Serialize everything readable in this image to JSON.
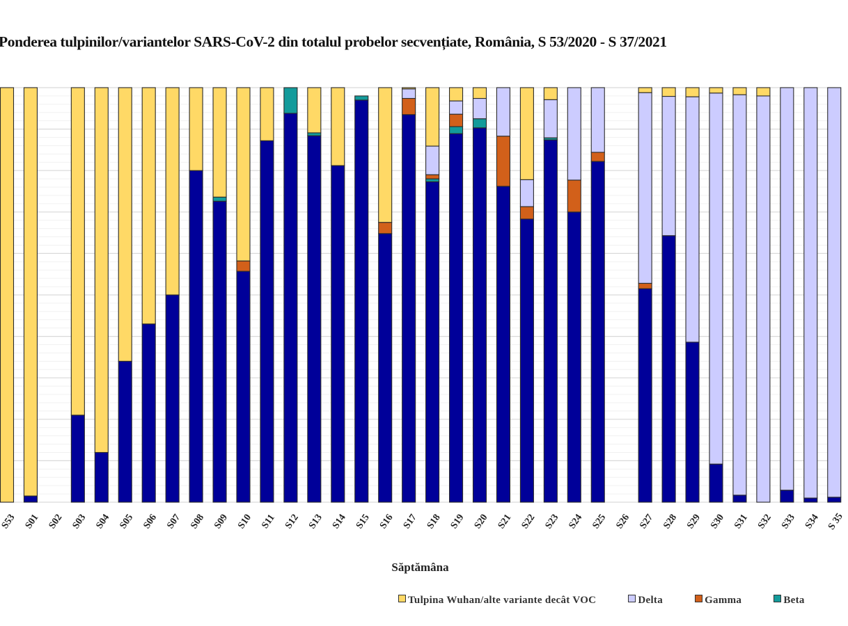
{
  "chart_data": {
    "type": "bar",
    "stacked": true,
    "percent_stacked": true,
    "title": "Ponderea tulpinilor/variantelor SARS-CoV-2 din totalul probelor secvențiate, România, S 53/2020 - S 37/2021",
    "xlabel": "Săptămâna",
    "ylabel": "",
    "ylim": [
      0,
      100
    ],
    "grid": true,
    "legend_position": "bottom",
    "categories": [
      "S53",
      "S01",
      "S02",
      "S03",
      "S04",
      "S05",
      "S06",
      "S07",
      "S08",
      "S09",
      "S10",
      "S11",
      "S12",
      "S13",
      "S14",
      "S15",
      "S16",
      "S17",
      "S18",
      "S19",
      "S20",
      "S21",
      "S22",
      "S23",
      "S24",
      "S25",
      "S26",
      "S27",
      "S28",
      "S29",
      "S30",
      "S31",
      "S32",
      "S33",
      "S34",
      "S 35"
    ],
    "series": [
      {
        "name": "",
        "color": "#000099",
        "values": [
          0,
          1.5,
          0,
          21,
          12,
          34,
          43,
          50,
          80,
          72.6,
          55.7,
          87.2,
          93.8,
          88.4,
          81.2,
          97,
          64.8,
          93.5,
          77.3,
          88.9,
          90.3,
          76.2,
          68.3,
          87.4,
          70,
          82.2,
          0,
          51.5,
          64.3,
          38.6,
          9.2,
          1.7,
          0,
          2.9,
          1,
          1.2
        ]
      },
      {
        "name": "Beta",
        "color": "#139B9B",
        "values": [
          0,
          0,
          0,
          0,
          0,
          0,
          0,
          0,
          0,
          1,
          0,
          0,
          6.2,
          0.7,
          0,
          1,
          0,
          0,
          0.7,
          1.7,
          2.2,
          0,
          0,
          0.5,
          0,
          0,
          0,
          0,
          0,
          0,
          0,
          0,
          0,
          0,
          0,
          0
        ]
      },
      {
        "name": "Gamma",
        "color": "#D2601A",
        "values": [
          0,
          0,
          0,
          0,
          0,
          0,
          0,
          0,
          0,
          0,
          2.5,
          0,
          0,
          0,
          0,
          0,
          2.7,
          3.9,
          1,
          3,
          0,
          12.1,
          3,
          0,
          7.7,
          2.2,
          0,
          1.3,
          0,
          0,
          0,
          0,
          0,
          0,
          0,
          0
        ]
      },
      {
        "name": "Delta",
        "color": "#CCCCFF",
        "values": [
          0,
          0,
          0,
          0,
          0,
          0,
          0,
          0,
          0,
          0,
          0,
          0,
          0,
          0,
          0,
          0,
          0,
          2.3,
          6.9,
          3.2,
          4.9,
          11.7,
          6.5,
          9.2,
          22.3,
          15.6,
          0,
          46,
          33.6,
          59.2,
          89.5,
          96.6,
          98,
          97.1,
          99,
          98.8
        ]
      },
      {
        "name": "Tulpina Wuhan/alte variante decât VOC",
        "color": "#FFD966",
        "values": [
          100,
          98.5,
          0,
          79,
          88,
          66,
          57,
          50,
          20,
          26.4,
          41.8,
          12.8,
          0,
          10.9,
          18.8,
          0,
          32.5,
          0.3,
          14.1,
          3.2,
          2.6,
          0,
          22.2,
          2.9,
          0,
          0,
          0,
          1.2,
          2.1,
          2.2,
          1.3,
          1.7,
          2,
          0,
          0,
          0
        ]
      }
    ]
  },
  "legend": [
    {
      "label": "Tulpina Wuhan/alte variante decât VOC",
      "color": "#FFD966"
    },
    {
      "label": "Delta",
      "color": "#CCCCFF"
    },
    {
      "label": "Gamma",
      "color": "#D2601A"
    },
    {
      "label": "Beta",
      "color": "#139B9B"
    }
  ]
}
